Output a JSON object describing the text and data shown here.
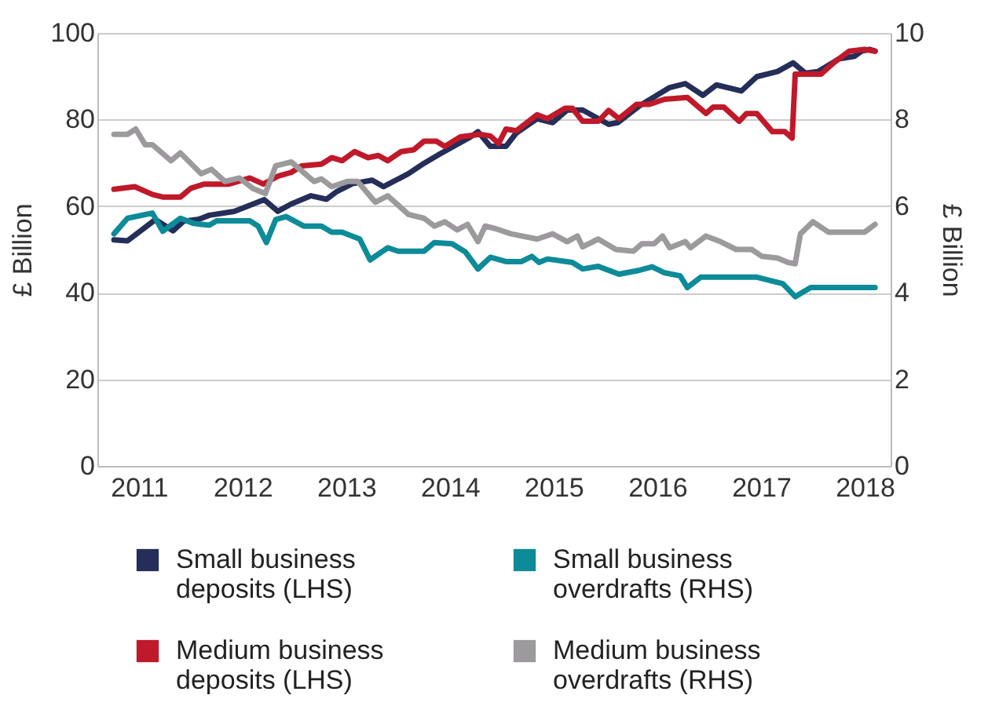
{
  "chart_data": {
    "type": "line",
    "ylabel": "£ Billion",
    "y2label": "£ Billion",
    "xlim": [
      2010.6,
      2018.25
    ],
    "xticks": [
      2011,
      2012,
      2013,
      2014,
      2015,
      2016,
      2017,
      2018
    ],
    "ylim": [
      0,
      100
    ],
    "yticks": [
      0,
      20,
      40,
      60,
      80,
      100
    ],
    "y2lim": [
      0,
      10
    ],
    "y2ticks": [
      0,
      2,
      4,
      6,
      8,
      10
    ],
    "grid": "y",
    "legend": "bottom",
    "marker": "none",
    "line_style": "solid",
    "series": [
      {
        "name": "Small business deposits (LHS)",
        "color": "#252e58",
        "axis": "y",
        "x": [
          2010.76,
          2010.89,
          2011.16,
          2011.33,
          2011.43,
          2011.58,
          2011.68,
          2011.92,
          2012.21,
          2012.34,
          2012.47,
          2012.66,
          2012.81,
          2012.91,
          2013.06,
          2013.25,
          2013.36,
          2013.6,
          2013.75,
          2013.9,
          2014.2,
          2014.27,
          2014.39,
          2014.54,
          2014.64,
          2014.84,
          2014.99,
          2015.13,
          2015.28,
          2015.53,
          2015.62,
          2015.83,
          2016.12,
          2016.27,
          2016.44,
          2016.57,
          2016.81,
          2016.96,
          2017.16,
          2017.31,
          2017.43,
          2017.55,
          2017.75,
          2017.9,
          2017.97,
          2018.05,
          2018.1
        ],
        "values": [
          52.2,
          52,
          56.9,
          54.3,
          56.5,
          57,
          57.9,
          58.8,
          61.5,
          58.8,
          60.5,
          62.4,
          61.6,
          63.4,
          65.2,
          66,
          64.5,
          67.5,
          69.9,
          72,
          76,
          77.2,
          73.8,
          73.8,
          76.9,
          80.2,
          79.3,
          82.2,
          82.2,
          78.9,
          79.3,
          83.2,
          87.4,
          88.3,
          85.6,
          88,
          86.6,
          89.9,
          91.1,
          93.1,
          90.7,
          91.1,
          94,
          94.6,
          95.8,
          96.2,
          95.8
        ]
      },
      {
        "name": "Small business overdrafts (RHS)",
        "color": "#0d8b98",
        "axis": "y2",
        "x": [
          2010.76,
          2010.89,
          2011.13,
          2011.23,
          2011.4,
          2011.53,
          2011.68,
          2011.75,
          2011.87,
          2012.07,
          2012.15,
          2012.23,
          2012.32,
          2012.42,
          2012.59,
          2012.76,
          2012.86,
          2012.96,
          2013.13,
          2013.23,
          2013.4,
          2013.5,
          2013.75,
          2013.85,
          2014.02,
          2014.15,
          2014.27,
          2014.39,
          2014.54,
          2014.69,
          2014.79,
          2014.86,
          2014.94,
          2015.18,
          2015.28,
          2015.43,
          2015.63,
          2015.83,
          2015.95,
          2016.07,
          2016.22,
          2016.29,
          2016.42,
          2016.96,
          2017.21,
          2017.33,
          2017.48,
          2018.1
        ],
        "values": [
          5.36,
          5.72,
          5.84,
          5.42,
          5.72,
          5.6,
          5.56,
          5.66,
          5.66,
          5.66,
          5.54,
          5.16,
          5.69,
          5.76,
          5.54,
          5.54,
          5.4,
          5.4,
          5.24,
          4.76,
          5.04,
          4.96,
          4.96,
          5.16,
          5.13,
          4.94,
          4.55,
          4.82,
          4.72,
          4.72,
          4.84,
          4.7,
          4.78,
          4.7,
          4.55,
          4.61,
          4.43,
          4.52,
          4.6,
          4.46,
          4.39,
          4.12,
          4.36,
          4.36,
          4.21,
          3.91,
          4.12,
          4.12
        ]
      },
      {
        "name": "Medium business deposits (LHS)",
        "color": "#c0192a",
        "axis": "y",
        "x": [
          2010.76,
          2010.96,
          2011.13,
          2011.23,
          2011.4,
          2011.5,
          2011.63,
          2011.87,
          2012.07,
          2012.2,
          2012.34,
          2012.47,
          2012.57,
          2012.76,
          2012.86,
          2012.96,
          2013.08,
          2013.21,
          2013.31,
          2013.4,
          2013.53,
          2013.65,
          2013.75,
          2013.87,
          2013.95,
          2014.1,
          2014.29,
          2014.39,
          2014.47,
          2014.54,
          2014.64,
          2014.84,
          2014.94,
          2015.11,
          2015.18,
          2015.28,
          2015.43,
          2015.53,
          2015.63,
          2015.8,
          2015.92,
          2016.07,
          2016.29,
          2016.47,
          2016.54,
          2016.64,
          2016.79,
          2016.86,
          2016.96,
          2017.11,
          2017.23,
          2017.3,
          2017.33,
          2017.46,
          2017.58,
          2017.7,
          2017.85,
          2018.0,
          2018.1
        ],
        "values": [
          63.9,
          64.5,
          62.7,
          62.1,
          62.1,
          64.1,
          65.1,
          65.1,
          66.5,
          65.1,
          66.9,
          67.8,
          69.3,
          69.7,
          71.2,
          70.5,
          72.6,
          71.2,
          71.7,
          70.5,
          72.6,
          73,
          75,
          75,
          73.8,
          76,
          76.6,
          76.2,
          74.5,
          77.8,
          77.4,
          81.1,
          80.2,
          82.6,
          82.6,
          79.6,
          79.6,
          82.1,
          80.2,
          83.5,
          83.5,
          84.7,
          85.1,
          81.4,
          82.9,
          82.9,
          79.6,
          81.4,
          81.4,
          77.2,
          77.2,
          75.7,
          90.5,
          90.5,
          90.5,
          93.1,
          95.8,
          96.2,
          95.8
        ]
      },
      {
        "name": "Medium business overdrafts (RHS)",
        "color": "#9c9a9c",
        "axis": "y2",
        "x": [
          2010.76,
          2010.89,
          2010.97,
          2011.06,
          2011.13,
          2011.31,
          2011.4,
          2011.6,
          2011.7,
          2011.83,
          2011.97,
          2012.1,
          2012.22,
          2012.32,
          2012.47,
          2012.69,
          2012.76,
          2012.86,
          2013.01,
          2013.11,
          2013.28,
          2013.4,
          2013.6,
          2013.75,
          2013.85,
          2013.95,
          2014.07,
          2014.17,
          2014.27,
          2014.34,
          2014.44,
          2014.59,
          2014.84,
          2014.99,
          2015.13,
          2015.23,
          2015.28,
          2015.43,
          2015.6,
          2015.77,
          2015.85,
          2015.97,
          2016.05,
          2016.12,
          2016.27,
          2016.32,
          2016.47,
          2016.61,
          2016.76,
          2016.91,
          2017.01,
          2017.16,
          2017.26,
          2017.33,
          2017.38,
          2017.5,
          2017.65,
          2018.0,
          2018.1
        ],
        "values": [
          7.66,
          7.66,
          7.78,
          7.42,
          7.42,
          7.05,
          7.23,
          6.75,
          6.85,
          6.57,
          6.65,
          6.41,
          6.29,
          6.93,
          7.02,
          6.57,
          6.63,
          6.45,
          6.57,
          6.57,
          6.09,
          6.24,
          5.81,
          5.72,
          5.54,
          5.64,
          5.45,
          5.58,
          5.18,
          5.54,
          5.48,
          5.36,
          5.24,
          5.36,
          5.18,
          5.31,
          5.06,
          5.24,
          5.0,
          4.96,
          5.13,
          5.13,
          5.31,
          5.04,
          5.18,
          5.04,
          5.31,
          5.18,
          5.0,
          5.0,
          4.84,
          4.8,
          4.7,
          4.67,
          5.36,
          5.64,
          5.4,
          5.4,
          5.58
        ]
      }
    ]
  }
}
